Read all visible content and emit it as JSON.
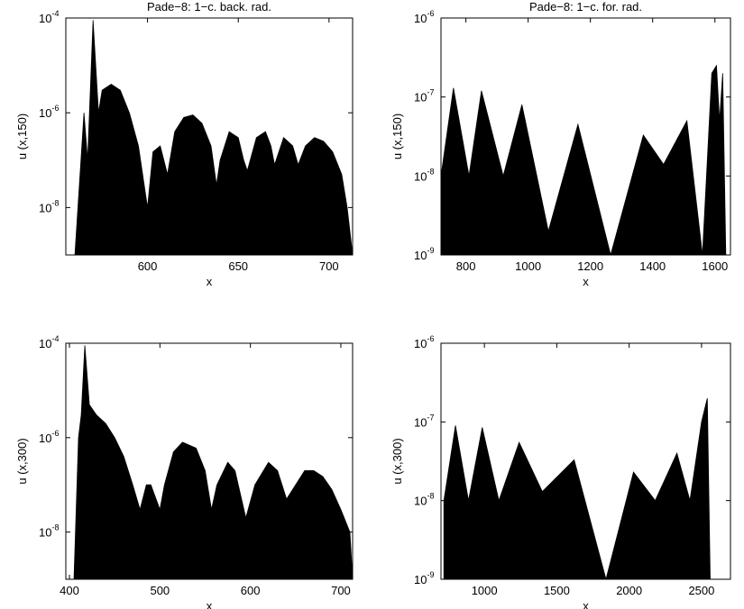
{
  "chart_data": [
    {
      "type": "area",
      "title": "Pade−8: 1−c. back. rad.",
      "xlabel": "x",
      "ylabel": "u (x,150)",
      "color": "#000000",
      "log_y": true,
      "x": [
        560,
        565,
        567,
        570,
        573,
        575,
        580,
        585,
        590,
        595,
        600,
        603,
        607,
        611,
        615,
        620,
        625,
        630,
        635,
        638,
        640,
        645,
        650,
        653,
        655,
        660,
        665,
        668,
        670,
        675,
        680,
        683,
        687,
        692,
        697,
        702,
        707,
        710,
        713
      ],
      "values": [
        1e-09,
        1e-06,
        1e-07,
        9e-05,
        1e-06,
        3e-06,
        4e-06,
        3e-06,
        1e-06,
        2e-07,
        1e-08,
        1.5e-07,
        2e-07,
        5e-08,
        4e-07,
        8e-07,
        9e-07,
        6e-07,
        2e-07,
        3e-08,
        1e-07,
        4e-07,
        3e-07,
        1e-07,
        6e-08,
        3e-07,
        4e-07,
        2e-07,
        8e-08,
        3e-07,
        2e-07,
        8e-08,
        2e-07,
        3e-07,
        2.5e-07,
        1.5e-07,
        5e-08,
        1e-08,
        1e-09
      ],
      "xlim": [
        555,
        713
      ],
      "xticks": [
        600,
        650,
        700
      ],
      "ylim": [
        1e-09,
        0.0001
      ],
      "yticks": [
        {
          "value": 0.0001,
          "label": "10^-4"
        },
        {
          "value": 1e-06,
          "label": "10^-6"
        },
        {
          "value": 1e-08,
          "label": "10^-8"
        }
      ]
    },
    {
      "type": "area",
      "title": "Pade−8: 1−c. for. rad.",
      "xlabel": "x",
      "ylabel": "u (x,150)",
      "color": "#000000",
      "log_y": true,
      "x": [
        720,
        760,
        810,
        850,
        920,
        980,
        1065,
        1160,
        1265,
        1370,
        1435,
        1510,
        1560,
        1590,
        1605,
        1615,
        1625,
        1635
      ],
      "values": [
        1e-08,
        1.3e-07,
        1e-08,
        1.2e-07,
        1e-08,
        8e-08,
        2e-09,
        4.5e-08,
        1e-09,
        3.3e-08,
        1.4e-08,
        5e-08,
        1e-09,
        2e-07,
        2.5e-07,
        5e-08,
        2e-07,
        1e-09
      ],
      "xlim": [
        720,
        1650
      ],
      "xticks": [
        800,
        1000,
        1200,
        1400,
        1600
      ],
      "ylim": [
        1e-09,
        1e-06
      ],
      "yticks": [
        {
          "value": 1e-06,
          "label": "10^-6"
        },
        {
          "value": 1e-07,
          "label": "10^-7"
        },
        {
          "value": 1e-08,
          "label": "10^-8"
        },
        {
          "value": 1e-09,
          "label": "10^-9"
        }
      ]
    },
    {
      "type": "area",
      "xlabel": "x",
      "ylabel": "u (x,300)",
      "color": "#000000",
      "log_y": true,
      "x": [
        405,
        410,
        413,
        417,
        422,
        430,
        440,
        450,
        460,
        470,
        478,
        485,
        490,
        500,
        505,
        515,
        525,
        540,
        550,
        557,
        563,
        575,
        583,
        595,
        605,
        620,
        630,
        640,
        650,
        660,
        670,
        680,
        690,
        700,
        710,
        713
      ],
      "values": [
        1e-09,
        1e-06,
        3e-06,
        9e-05,
        5e-06,
        3e-06,
        2e-06,
        1e-06,
        4e-07,
        1e-07,
        3e-08,
        1e-07,
        1e-07,
        3e-08,
        1e-07,
        5e-07,
        8e-07,
        6e-07,
        2e-07,
        3e-08,
        1e-07,
        3e-07,
        2e-07,
        2e-08,
        1e-07,
        3e-07,
        2e-07,
        5e-08,
        1e-07,
        2e-07,
        2e-07,
        1.5e-07,
        8e-08,
        3e-08,
        1e-08,
        1e-09
      ],
      "xlim": [
        396,
        713
      ],
      "xticks": [
        400,
        500,
        600,
        700
      ],
      "ylim": [
        1e-09,
        0.0001
      ],
      "yticks": [
        {
          "value": 0.0001,
          "label": "10^-4"
        },
        {
          "value": 1e-06,
          "label": "10^-6"
        },
        {
          "value": 1e-08,
          "label": "10^-8"
        }
      ]
    },
    {
      "type": "area",
      "xlabel": "x",
      "ylabel": "u (x,300)",
      "color": "#000000",
      "log_y": true,
      "x": [
        720,
        800,
        890,
        985,
        1100,
        1240,
        1400,
        1620,
        1840,
        2030,
        2180,
        2330,
        2420,
        2500,
        2540,
        2560
      ],
      "values": [
        1e-08,
        9e-08,
        1e-08,
        8.5e-08,
        1e-08,
        5.5e-08,
        1.3e-08,
        3.3e-08,
        1e-09,
        2.3e-08,
        1e-08,
        4e-08,
        1e-08,
        1e-07,
        2e-07,
        1e-09
      ],
      "xlim": [
        700,
        2700
      ],
      "xticks": [
        1000,
        1500,
        2000,
        2500
      ],
      "ylim": [
        1e-09,
        1e-06
      ],
      "yticks": [
        {
          "value": 1e-06,
          "label": "10^-6"
        },
        {
          "value": 1e-07,
          "label": "10^-7"
        },
        {
          "value": 1e-08,
          "label": "10^-8"
        },
        {
          "value": 1e-09,
          "label": "10^-9"
        }
      ]
    }
  ]
}
